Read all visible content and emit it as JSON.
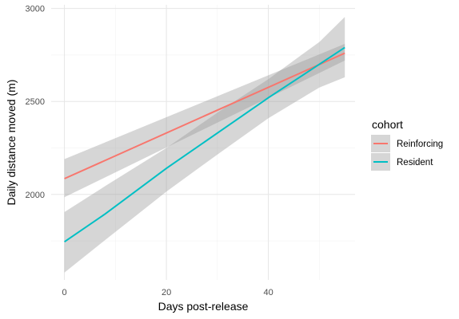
{
  "chart_data": {
    "type": "line",
    "xlabel": "Days post-release",
    "ylabel": "Daily distance moved (m)",
    "xlim": [
      -2.6,
      57.0
    ],
    "ylim": [
      1540,
      3020
    ],
    "x_ticks": [
      0,
      20,
      40
    ],
    "x_minor": [
      10,
      30,
      50
    ],
    "y_ticks": [
      2000,
      2500,
      3000
    ],
    "y_minor": [
      1750,
      2250,
      2750
    ],
    "grid": true,
    "legend": {
      "title": "cohort",
      "position": "right"
    },
    "series": [
      {
        "name": "Reinforcing",
        "color": "#F8766D",
        "x": [
          0,
          55
        ],
        "y": [
          2085,
          2760
        ],
        "ci_upper": [
          2190,
          2810
        ],
        "ci_lower": [
          1985,
          2720
        ]
      },
      {
        "name": "Resident",
        "color": "#00BFC4",
        "x": [
          0,
          8,
          20,
          30,
          40,
          50,
          55
        ],
        "y": [
          1745,
          1895,
          2140,
          2330,
          2520,
          2700,
          2790
        ],
        "ci_upper": [
          1905,
          2045,
          2250,
          2440,
          2620,
          2820,
          2955
        ],
        "ci_lower": [
          1580,
          1755,
          2015,
          2215,
          2410,
          2575,
          2630
        ]
      }
    ],
    "ribbon_color": "#999999"
  }
}
